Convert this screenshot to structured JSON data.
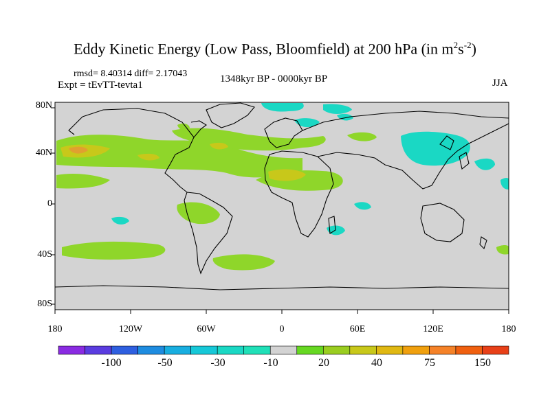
{
  "title": {
    "main": "Eddy Kinetic Energy (Low Pass, Bloomfield) at 200 hPa (in m",
    "exp1": "2",
    "mid": "s",
    "exp2": "-2",
    "close": ")"
  },
  "stats": "rmsd= 8.40314 diff= 2.17043",
  "experiment": "Expt = tEvTT-tevta1",
  "period": "1348kyr BP - 0000kyr BP",
  "season": "JJA",
  "map": {
    "lat_labels": [
      "80N",
      "40N",
      "0",
      "40S",
      "80S"
    ],
    "lon_labels": [
      "180",
      "120W",
      "60W",
      "0",
      "60E",
      "120E",
      "180"
    ],
    "ocean_color": "#d3d3d3",
    "coast_color": "#000000"
  },
  "colorbar": {
    "colors": [
      "#8a2be2",
      "#5a3ce0",
      "#2e5fe0",
      "#1e8ce0",
      "#18aee0",
      "#16c8d8",
      "#1ad8c4",
      "#20e0b8",
      "#d3d3d3",
      "#66d822",
      "#9acd20",
      "#c8c81a",
      "#e0b812",
      "#f0a00e",
      "#f58228",
      "#f06010",
      "#e84018"
    ],
    "labels": [
      "-100",
      "-50",
      "-30",
      "-10",
      "20",
      "40",
      "75",
      "150"
    ]
  },
  "fields": {
    "positive_color": "#8fd62a",
    "strong_color": "#c8c81a",
    "peak_color": "#e0a030",
    "negative_color": "#1ad8c4"
  }
}
